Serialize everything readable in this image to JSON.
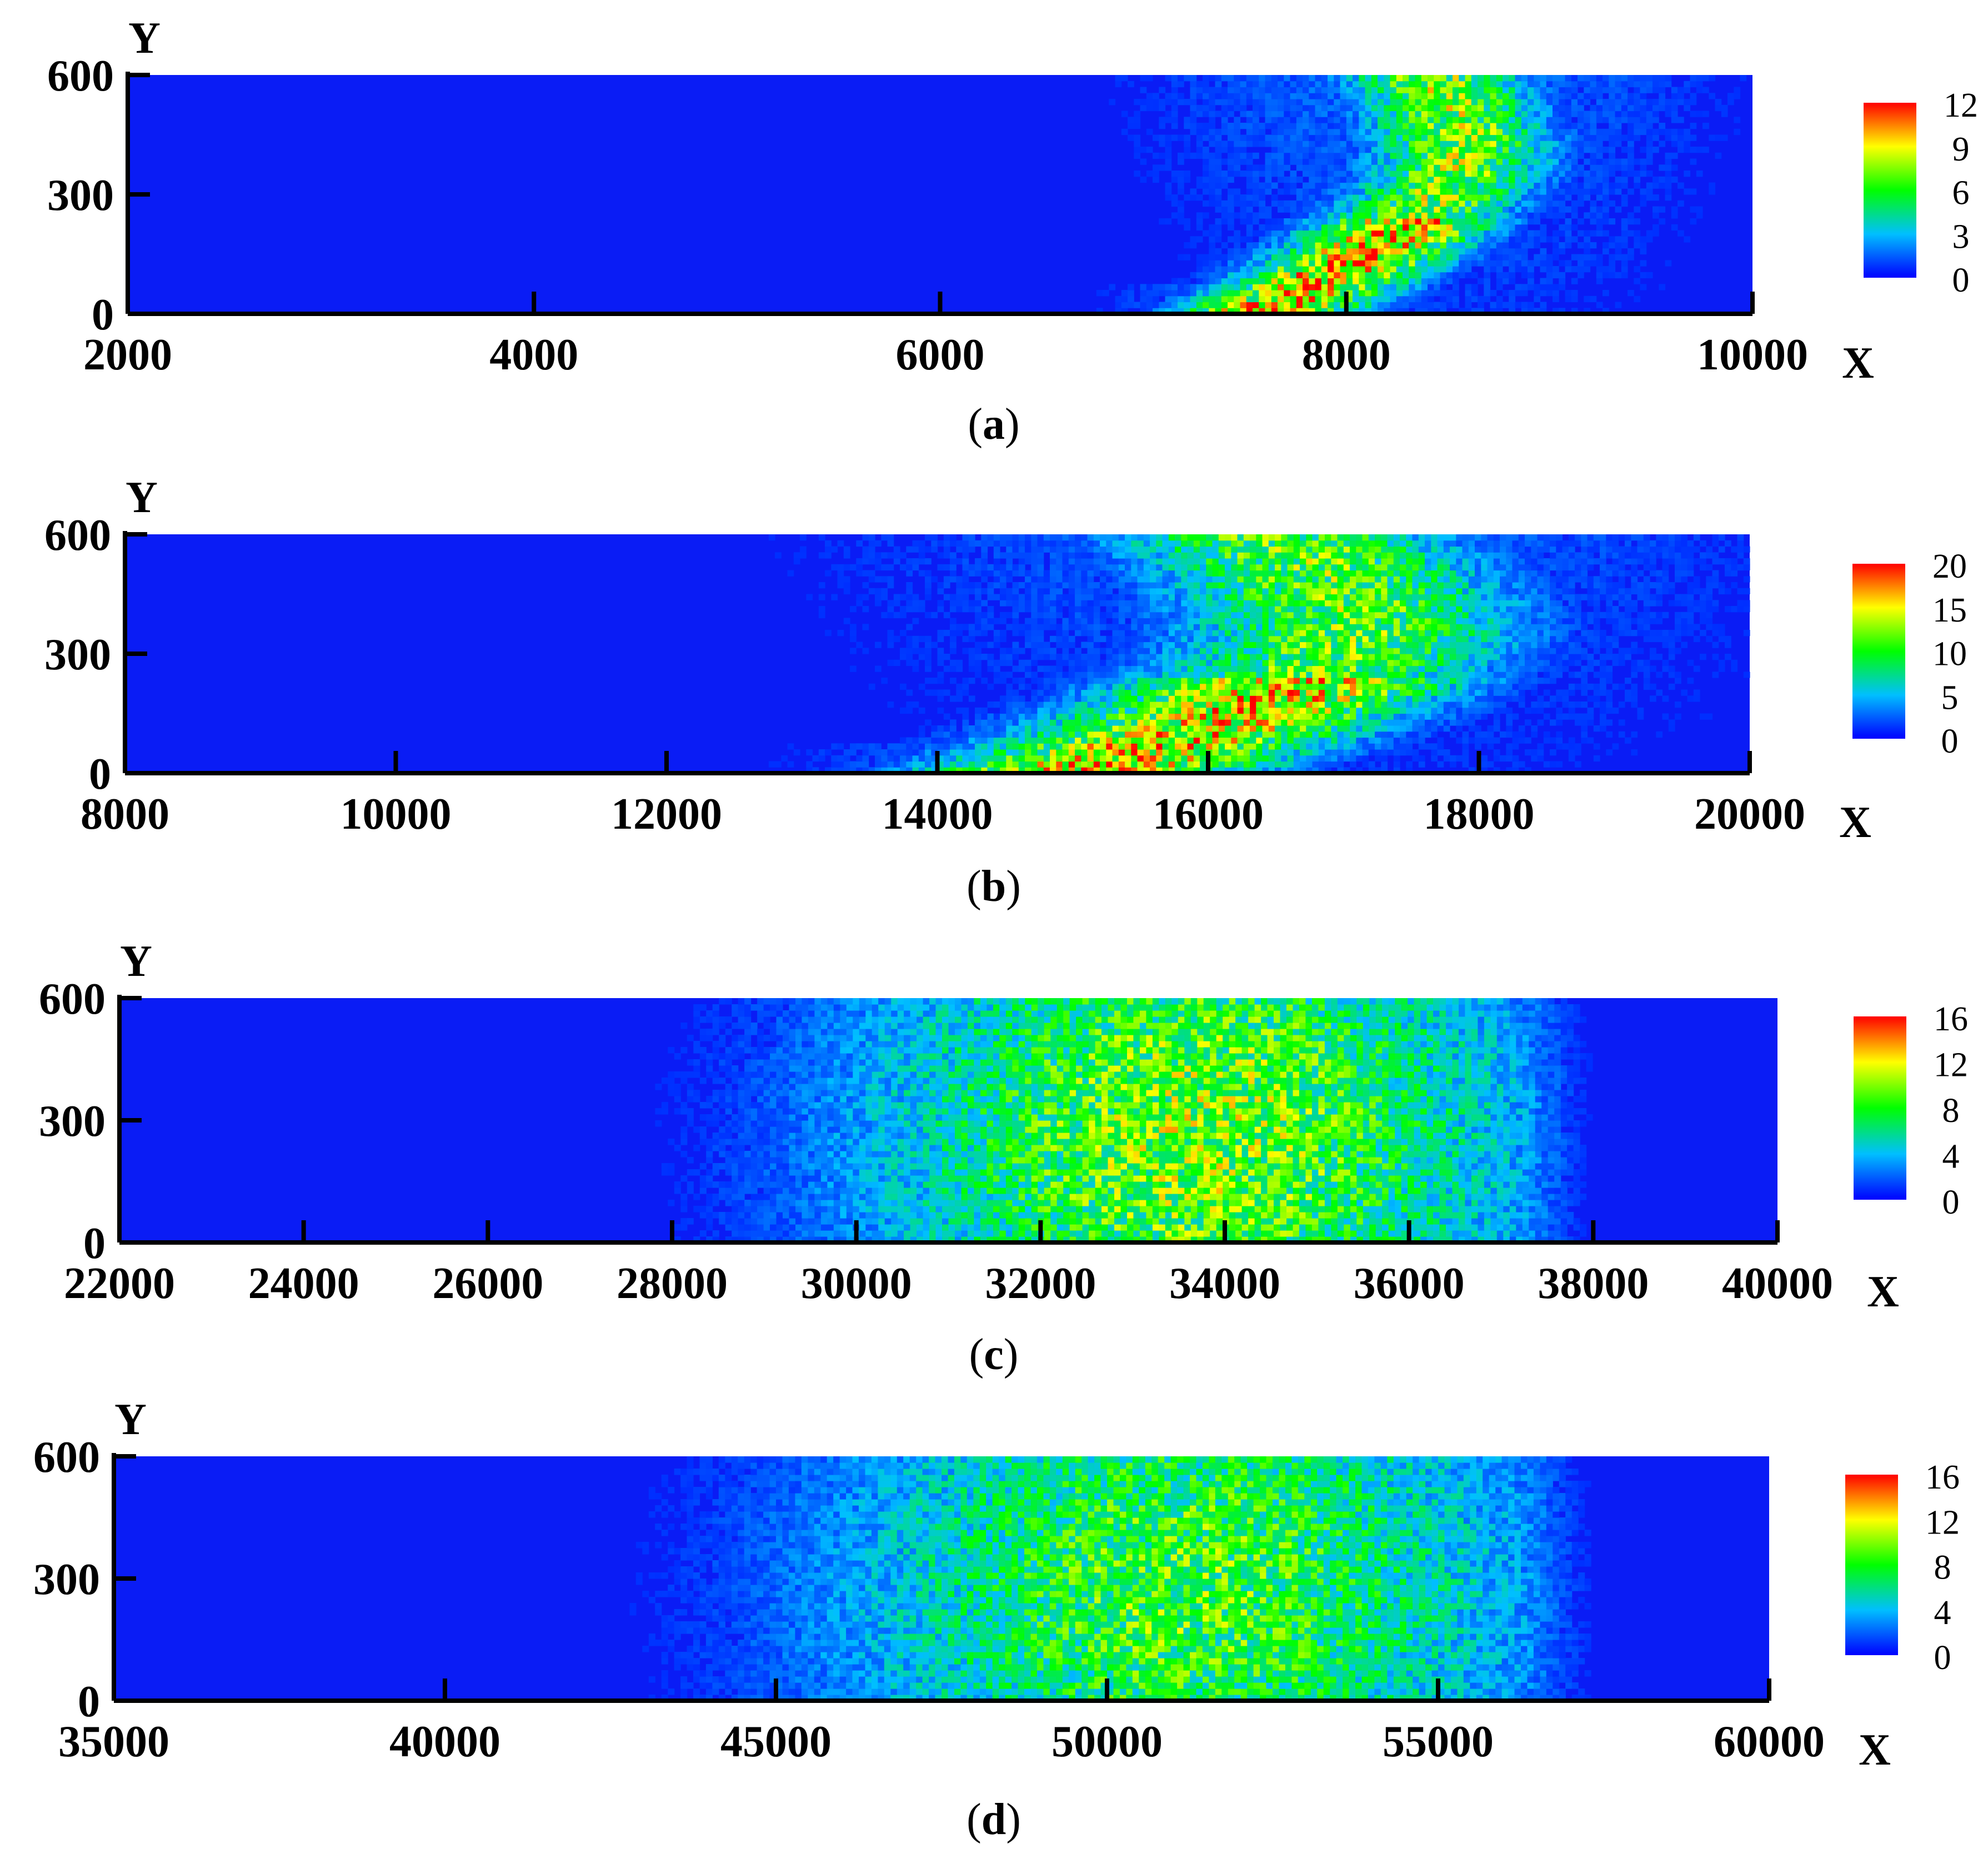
{
  "colors": {
    "background": "#ffffff",
    "field_base": "#0a1cf5",
    "colormap": [
      "#0000ff",
      "#00bfff",
      "#00ff00",
      "#ffff00",
      "#ff0000"
    ],
    "axis": "#000000"
  },
  "chart_data": [
    {
      "type": "heatmap",
      "panel_label": "a",
      "xlabel": "X",
      "ylabel": "Y",
      "xlim": [
        2000,
        10000
      ],
      "ylim": [
        0,
        600
      ],
      "x_ticks": [
        2000,
        4000,
        6000,
        8000,
        10000
      ],
      "x_tick_labels": [
        "2000",
        "4000",
        "6000",
        "8000",
        "10000"
      ],
      "y_ticks": [
        0,
        300,
        600
      ],
      "y_tick_labels": [
        "0",
        "300",
        "600"
      ],
      "colorbar": {
        "min": 0,
        "max": 12,
        "ticks": [
          0,
          3,
          6,
          9,
          12
        ],
        "tick_labels": [
          "0",
          "3",
          "6",
          "9",
          "12"
        ]
      },
      "plume": {
        "front_x": 9200,
        "front_y": 380,
        "tail_x": 6500,
        "peak": 9,
        "shape": "crescent",
        "spread": 0.35
      }
    },
    {
      "type": "heatmap",
      "panel_label": "b",
      "xlabel": "X",
      "ylabel": "Y",
      "xlim": [
        8000,
        20000
      ],
      "ylim": [
        0,
        600
      ],
      "x_ticks": [
        8000,
        10000,
        12000,
        14000,
        16000,
        18000,
        20000
      ],
      "x_tick_labels": [
        "8000",
        "10000",
        "12000",
        "14000",
        "16000",
        "18000",
        "20000"
      ],
      "y_ticks": [
        0,
        300,
        600
      ],
      "y_tick_labels": [
        "0",
        "300",
        "600"
      ],
      "colorbar": {
        "min": 0,
        "max": 20,
        "ticks": [
          0,
          5,
          10,
          15,
          20
        ],
        "tick_labels": [
          "0",
          "5",
          "10",
          "15",
          "20"
        ]
      },
      "plume": {
        "front_x": 18700,
        "front_y": 330,
        "tail_x": 12000,
        "peak": 14,
        "shape": "crescent",
        "spread": 0.55
      }
    },
    {
      "type": "heatmap",
      "panel_label": "c",
      "xlabel": "X",
      "ylabel": "Y",
      "xlim": [
        22000,
        40000
      ],
      "ylim": [
        0,
        600
      ],
      "x_ticks": [
        22000,
        24000,
        26000,
        28000,
        30000,
        32000,
        34000,
        36000,
        38000,
        40000
      ],
      "x_tick_labels": [
        "22000",
        "24000",
        "26000",
        "28000",
        "30000",
        "32000",
        "34000",
        "36000",
        "38000",
        "40000"
      ],
      "y_ticks": [
        0,
        300,
        600
      ],
      "y_tick_labels": [
        "0",
        "300",
        "600"
      ],
      "colorbar": {
        "min": 0,
        "max": 16,
        "ticks": [
          0,
          4,
          8,
          12,
          16
        ],
        "tick_labels": [
          "0",
          "4",
          "8",
          "12",
          "16"
        ]
      },
      "plume": {
        "front_x": 37000,
        "front_y": 300,
        "tail_x": 26000,
        "peak": 9,
        "shape": "diffuse",
        "spread": 0.8
      }
    },
    {
      "type": "heatmap",
      "panel_label": "d",
      "xlabel": "X",
      "ylabel": "Y",
      "xlim": [
        35000,
        60000
      ],
      "ylim": [
        0,
        600
      ],
      "x_ticks": [
        35000,
        40000,
        45000,
        50000,
        55000,
        60000
      ],
      "x_tick_labels": [
        "35000",
        "40000",
        "45000",
        "50000",
        "55000",
        "60000"
      ],
      "y_ticks": [
        0,
        300,
        600
      ],
      "y_tick_labels": [
        "0",
        "300",
        "600"
      ],
      "colorbar": {
        "min": 0,
        "max": 16,
        "ticks": [
          0,
          4,
          8,
          12,
          16
        ],
        "tick_labels": [
          "0",
          "4",
          "8",
          "12",
          "16"
        ]
      },
      "plume": {
        "front_x": 56000,
        "front_y": 300,
        "tail_x": 40000,
        "peak": 8,
        "shape": "diffuse",
        "spread": 0.85
      }
    }
  ]
}
